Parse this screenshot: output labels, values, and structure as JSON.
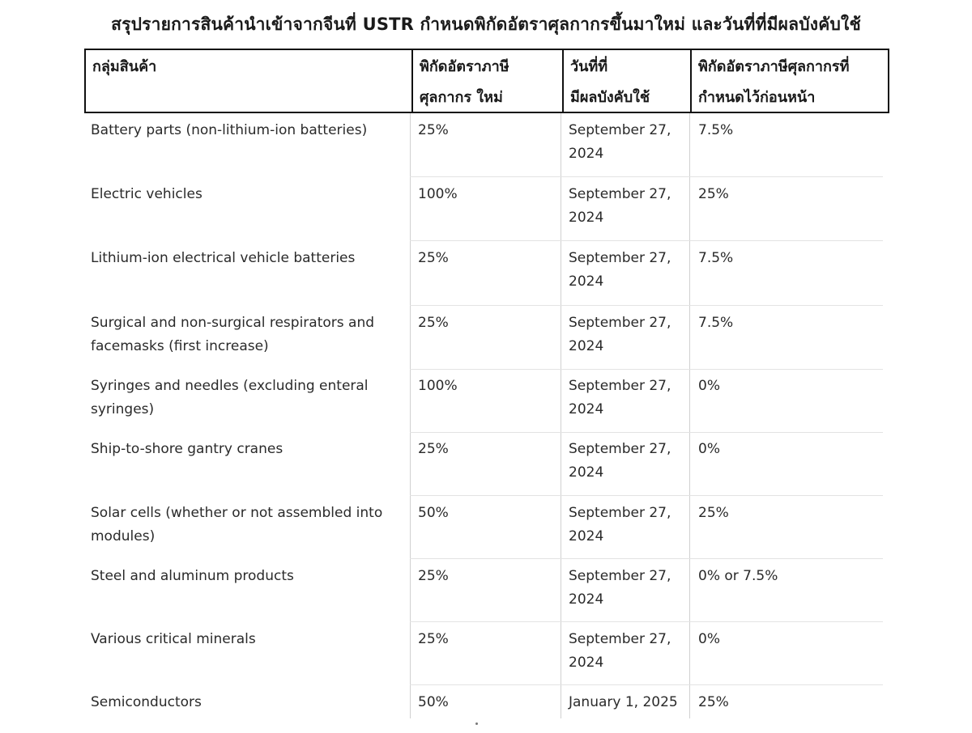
{
  "title": "สรุปรายการสินค้านำเข้าจากจีนที่ USTR กำหนดพิกัดอัตราศุลกากรขึ้นมาใหม่ และวันที่ที่มีผลบังคับใช้",
  "headers": [
    {
      "line1": "กลุ่มสินค้า",
      "line2": ""
    },
    {
      "line1": "พิกัดอัตราภาษี",
      "line2": "ศุลกากร ใหม่"
    },
    {
      "line1": "วันที่ที่",
      "line2": "มีผลบังคับใช้"
    },
    {
      "line1": "พิกัดอัตราภาษีศุลกากรที่",
      "line2": "กำหนดไว้ก่อนหน้า"
    }
  ],
  "rows": [
    {
      "product_l1": "Battery parts (non-lithium-ion batteries)",
      "product_l2": "",
      "new_rate": "25%",
      "date_l1": "September 27,",
      "date_l2": "2024",
      "prior_rate": "7.5%"
    },
    {
      "product_l1": "Electric vehicles",
      "product_l2": "",
      "new_rate": "100%",
      "date_l1": "September 27,",
      "date_l2": "2024",
      "prior_rate": "25%"
    },
    {
      "product_l1": "Lithium-ion electrical vehicle batteries",
      "product_l2": "",
      "new_rate": "25%",
      "date_l1": "September 27,",
      "date_l2": "2024",
      "prior_rate": "7.5%"
    },
    {
      "product_l1": "Surgical and non-surgical respirators and",
      "product_l2": "facemasks (first increase)",
      "new_rate": "25%",
      "date_l1": "September 27,",
      "date_l2": "2024",
      "prior_rate": "7.5%"
    },
    {
      "product_l1": "Syringes and needles (excluding enteral",
      "product_l2": "syringes)",
      "new_rate": "100%",
      "date_l1": "September 27,",
      "date_l2": "2024",
      "prior_rate": "0%"
    },
    {
      "product_l1": "Ship-to-shore gantry cranes",
      "product_l2": "",
      "new_rate": "25%",
      "date_l1": "September 27,",
      "date_l2": "2024",
      "prior_rate": "0%"
    },
    {
      "product_l1": "Solar cells (whether or not assembled into",
      "product_l2": "modules)",
      "new_rate": "50%",
      "date_l1": "September 27,",
      "date_l2": "2024",
      "prior_rate": "25%"
    },
    {
      "product_l1": "Steel and aluminum products",
      "product_l2": "",
      "new_rate": "25%",
      "date_l1": "September 27,",
      "date_l2": "2024",
      "prior_rate": "0% or 7.5%"
    },
    {
      "product_l1": "Various critical minerals",
      "product_l2": "",
      "new_rate": "25%",
      "date_l1": "September 27,",
      "date_l2": "2024",
      "prior_rate": "0%"
    },
    {
      "product_l1": "Semiconductors",
      "product_l2": "",
      "new_rate": "50%",
      "date_l1": "January 1, 2025",
      "date_l2": "",
      "prior_rate": "25%"
    }
  ]
}
